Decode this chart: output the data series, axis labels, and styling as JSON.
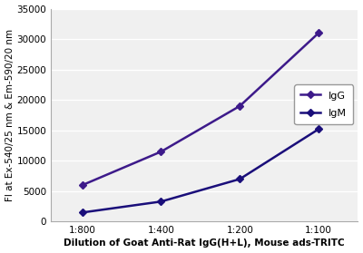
{
  "x_labels": [
    "1:800",
    "1:400",
    "1:200",
    "1:100"
  ],
  "x_positions": [
    0,
    1,
    2,
    3
  ],
  "IgG": [
    6000,
    11500,
    19000,
    31000
  ],
  "IgM": [
    1500,
    3300,
    7000,
    15200
  ],
  "IgG_color": "#3d1a8a",
  "IgM_color": "#1a0e7a",
  "ylim": [
    0,
    35000
  ],
  "yticks": [
    0,
    5000,
    10000,
    15000,
    20000,
    25000,
    30000,
    35000
  ],
  "ylabel": "FI at Ex-540/25 nm & Em-590/20 nm",
  "xlabel": "Dilution of Goat Anti-Rat IgG(H+L), Mouse ads-TRITC",
  "legend_IgG": "IgG",
  "legend_IgM": "IgM",
  "axis_fontsize": 7.5,
  "tick_fontsize": 7.5,
  "legend_fontsize": 8,
  "background_color": "#ffffff",
  "plot_bg_color": "#f0f0f0",
  "grid_color": "#ffffff"
}
